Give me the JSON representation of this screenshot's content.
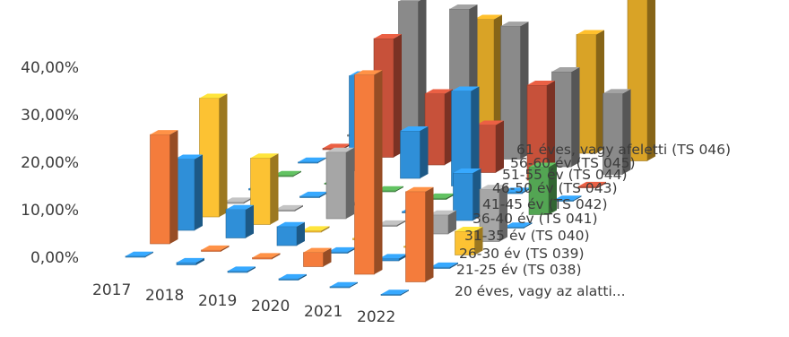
{
  "chart_data": {
    "type": "bar",
    "variant": "3d-column",
    "title": "",
    "xlabel": "",
    "ylabel": "",
    "categories": [
      "2017",
      "2018",
      "2019",
      "2020",
      "2021",
      "2022"
    ],
    "yticks": [
      "0,00%",
      "10,00%",
      "20,00%",
      "30,00%",
      "40,00%"
    ],
    "ylim": [
      0,
      45
    ],
    "series": [
      {
        "name": "20 éves, vagy az alatti...",
        "color": "#2f8fd8",
        "values": [
          0.2,
          0.5,
          0.3,
          0.3,
          0.2,
          0.2
        ]
      },
      {
        "name": "21-25 év (TS 038)",
        "color": "#f47c3c",
        "values": [
          23,
          0.3,
          0.3,
          3,
          42,
          19
        ]
      },
      {
        "name": "26-30 év (TS 039)",
        "color": "#2f8fd8",
        "values": [
          15,
          6,
          4,
          0.3,
          0.5,
          0.3
        ]
      },
      {
        "name": "31-35 év (TS 040)",
        "color": "#fcc233",
        "values": [
          25,
          14,
          0.3,
          0.3,
          0.2,
          5
        ]
      },
      {
        "name": "36-40 év (TS 041)",
        "color": "#a6a6a6",
        "values": [
          0.3,
          0.3,
          14,
          0.3,
          4,
          11
        ]
      },
      {
        "name": "41-45 év (TS 042)",
        "color": "#2f8fd8",
        "values": [
          0.3,
          0.3,
          0.3,
          0.3,
          10,
          0.2
        ]
      },
      {
        "name": "46-50 év (TS 043)",
        "color": "#53a553",
        "values": [
          0.2,
          0.2,
          0.2,
          0.3,
          0.2,
          10
        ]
      },
      {
        "name": "51-55 év (TS 044)",
        "color": "#2f8fd8",
        "values": [
          0.2,
          20,
          10,
          20,
          0.3,
          0.2
        ]
      },
      {
        "name": "56-60 év (TS 045)",
        "color": "#c7513a",
        "values": [
          0.3,
          25,
          15,
          10,
          20,
          0.3
        ]
      },
      {
        "name": "61 éves, vagy afeletti (TS 046)",
        "color": "#8a8a8a",
        "values": [
          0.3,
          30,
          30,
          28,
          20,
          17
        ]
      },
      {
        "name": "",
        "color": "#d9a326",
        "values": [
          0.3,
          0.3,
          25,
          0.3,
          25,
          48
        ]
      }
    ],
    "grid": false,
    "legend": "none"
  }
}
